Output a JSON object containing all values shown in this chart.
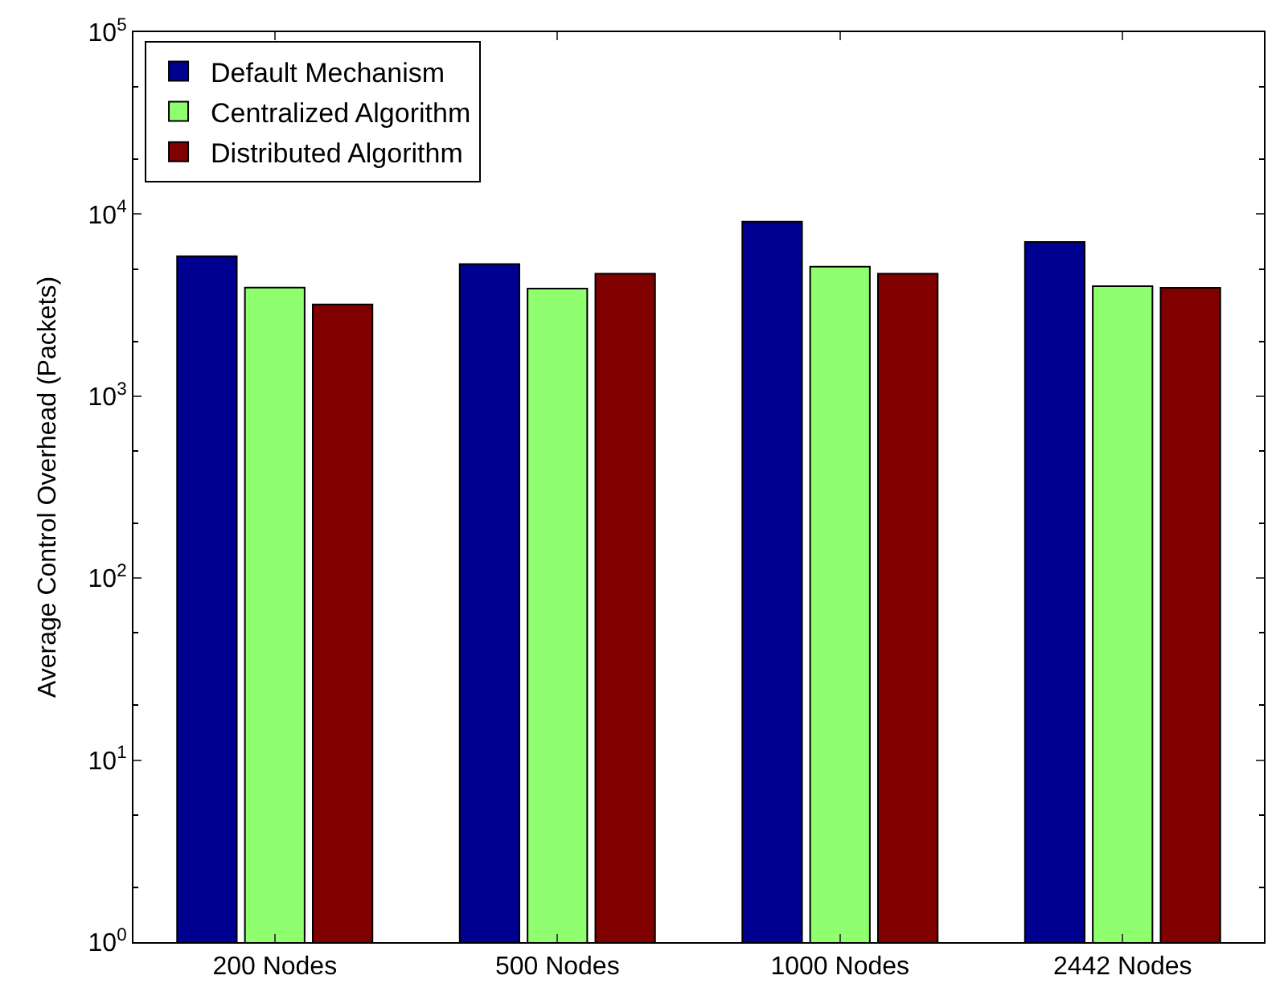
{
  "chart_data": {
    "type": "bar",
    "ylabel": "Average Control Overhead (Packets)",
    "categories": [
      "200 Nodes",
      "500 Nodes",
      "1000 Nodes",
      "2442 Nodes"
    ],
    "series": [
      {
        "name": "Default Mechanism",
        "color": "#000090",
        "values": [
          5870,
          5320,
          9100,
          7030
        ]
      },
      {
        "name": "Centralized Algorithm",
        "color": "#8fff6f",
        "values": [
          3950,
          3900,
          5140,
          4020
        ]
      },
      {
        "name": "Distributed Algorithm",
        "color": "#800000",
        "values": [
          3190,
          4710,
          4710,
          3940
        ]
      }
    ],
    "log": true,
    "ylim": [
      1,
      100000
    ],
    "yticks": [
      {
        "value": 1,
        "label": "10$^{0}$"
      },
      {
        "value": 10,
        "label": "10$^{1}$"
      },
      {
        "value": 100,
        "label": "10$^{2}$"
      },
      {
        "value": 1000,
        "label": "10$^{3}$"
      },
      {
        "value": 10000,
        "label": "10$^{4}$"
      },
      {
        "value": 100000,
        "label": "10$^{5}$"
      }
    ],
    "legend": "top left"
  }
}
